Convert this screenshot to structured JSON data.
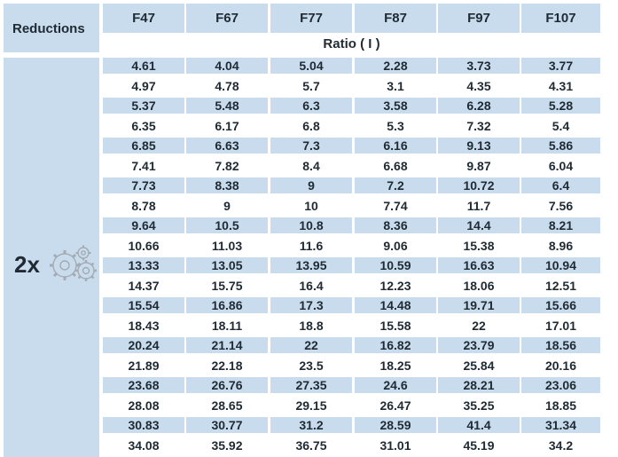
{
  "corner_header": "Reductions",
  "reduction_type": "2x",
  "ratio_label": "Ratio ( I )",
  "gear_icon": "gears-icon",
  "colors": {
    "header_bg": "#c9dced",
    "text": "#1f2a33",
    "icon": "#a4abb2"
  },
  "columns": [
    "F47",
    "F67",
    "F77",
    "F87",
    "F97",
    "F107"
  ],
  "rows": [
    [
      "4.61",
      "4.04",
      "5.04",
      "2.28",
      "3.73",
      "3.77"
    ],
    [
      "4.97",
      "4.78",
      "5.7",
      "3.1",
      "4.35",
      "4.31"
    ],
    [
      "5.37",
      "5.48",
      "6.3",
      "3.58",
      "6.28",
      "5.28"
    ],
    [
      "6.35",
      "6.17",
      "6.8",
      "5.3",
      "7.32",
      "5.4"
    ],
    [
      "6.85",
      "6.63",
      "7.3",
      "6.16",
      "9.13",
      "5.86"
    ],
    [
      "7.41",
      "7.82",
      "8.4",
      "6.68",
      "9.87",
      "6.04"
    ],
    [
      "7.73",
      "8.38",
      "9",
      "7.2",
      "10.72",
      "6.4"
    ],
    [
      "8.78",
      "9",
      "10",
      "7.74",
      "11.7",
      "7.56"
    ],
    [
      "9.64",
      "10.5",
      "10.8",
      "8.36",
      "14.4",
      "8.21"
    ],
    [
      "10.66",
      "11.03",
      "11.6",
      "9.06",
      "15.38",
      "8.96"
    ],
    [
      "13.33",
      "13.05",
      "13.95",
      "10.59",
      "16.63",
      "10.94"
    ],
    [
      "14.37",
      "15.75",
      "16.4",
      "12.23",
      "18.06",
      "12.51"
    ],
    [
      "15.54",
      "16.86",
      "17.3",
      "14.48",
      "19.71",
      "15.66"
    ],
    [
      "18.43",
      "18.11",
      "18.8",
      "15.58",
      "22",
      "17.01"
    ],
    [
      "20.24",
      "21.14",
      "22",
      "16.82",
      "23.79",
      "18.56"
    ],
    [
      "21.89",
      "22.18",
      "23.5",
      "18.25",
      "25.84",
      "20.16"
    ],
    [
      "23.68",
      "26.76",
      "27.35",
      "24.6",
      "28.21",
      "23.06"
    ],
    [
      "28.08",
      "28.65",
      "29.15",
      "26.47",
      "35.25",
      "18.85"
    ],
    [
      "30.83",
      "30.77",
      "31.2",
      "28.59",
      "41.4",
      "31.34"
    ],
    [
      "34.08",
      "35.92",
      "36.75",
      "31.01",
      "45.19",
      "34.2"
    ]
  ]
}
